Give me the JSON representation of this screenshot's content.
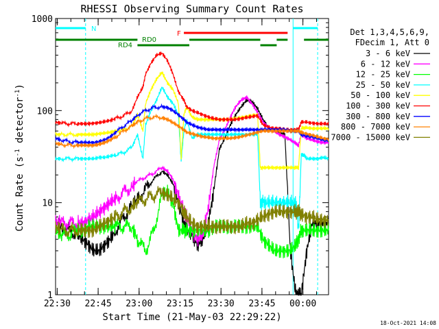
{
  "chart_data": {
    "type": "line",
    "title": "RHESSI Observing Summary Count Rates",
    "xlabel": "Start Time (21-May-03 22:29:22)",
    "ylabel_parts": [
      "Count Rate (s",
      "-1",
      " detector",
      "-1",
      ")"
    ],
    "yscale": "log",
    "ylim": [
      1,
      1000
    ],
    "xlim_minutes": [
      0,
      100
    ],
    "y_ticks": [
      {
        "v": 1,
        "label": "1"
      },
      {
        "v": 10,
        "label": "10"
      },
      {
        "v": 100,
        "label": "100"
      },
      {
        "v": 1000,
        "label": "1000"
      }
    ],
    "x_ticks": [
      {
        "t": 0.6,
        "label": "22:30"
      },
      {
        "t": 15.6,
        "label": "22:45"
      },
      {
        "t": 30.6,
        "label": "23:00"
      },
      {
        "t": 45.6,
        "label": "23:15"
      },
      {
        "t": 60.6,
        "label": "23:30"
      },
      {
        "t": 75.6,
        "label": "23:45"
      },
      {
        "t": 90.6,
        "label": "00:00"
      }
    ],
    "legend_header": [
      "Det 1,3,4,5,6,9,",
      "FDecim 1, Att 0"
    ],
    "series": [
      {
        "name": "3 - 6 keV",
        "color": "#000000",
        "x": [
          0,
          2,
          5,
          8,
          10,
          12,
          14,
          16,
          18,
          20,
          22,
          25,
          28,
          30,
          33,
          36,
          39,
          41,
          43,
          45,
          47,
          48,
          50,
          52,
          54,
          56,
          58,
          60,
          62,
          64,
          66,
          68,
          70,
          72,
          74,
          76,
          78,
          80,
          82,
          84,
          86,
          88,
          89,
          90,
          92,
          94,
          96,
          98,
          100
        ],
        "y": [
          6,
          5.5,
          5,
          4.5,
          4,
          3.5,
          3,
          3,
          3.5,
          4,
          5,
          7,
          9,
          11,
          14,
          18,
          22,
          20,
          16,
          10,
          6,
          5,
          4.5,
          3.5,
          4,
          6,
          14,
          38,
          50,
          70,
          90,
          110,
          130,
          125,
          105,
          80,
          65,
          60,
          58,
          55,
          3,
          1,
          1,
          1,
          3,
          6,
          6,
          6,
          6
        ]
      },
      {
        "name": "6 - 12 keV",
        "color": "#ff00ff",
        "x": [
          0,
          2,
          5,
          8,
          10,
          12,
          14,
          16,
          18,
          20,
          22,
          25,
          28,
          30,
          33,
          36,
          39,
          41,
          43,
          45,
          47,
          48,
          50,
          52,
          54,
          56,
          58,
          60,
          62,
          64,
          66,
          68,
          70,
          72,
          74,
          76,
          78,
          80,
          82,
          84,
          86,
          88,
          89,
          90,
          92,
          94,
          96,
          98,
          100
        ],
        "y": [
          6,
          6,
          6,
          6,
          6,
          6.5,
          7,
          8,
          9,
          10,
          11,
          13,
          15,
          17,
          19,
          21,
          24,
          22,
          18,
          12,
          8,
          7,
          5,
          4,
          4.5,
          9,
          25,
          48,
          62,
          85,
          110,
          130,
          140,
          118,
          95,
          75,
          65,
          60,
          55,
          52,
          48,
          44,
          42,
          55,
          50,
          48,
          46,
          45,
          45
        ]
      },
      {
        "name": "12 - 25 keV",
        "color": "#00ff00",
        "x": [
          0,
          2,
          5,
          8,
          10,
          12,
          14,
          16,
          18,
          20,
          22,
          25,
          28,
          30,
          33,
          36,
          39,
          41,
          43,
          45,
          47,
          48,
          50,
          52,
          54,
          56,
          58,
          60,
          62,
          64,
          66,
          68,
          70,
          72,
          74,
          76,
          78,
          80,
          82,
          84,
          86,
          88,
          89,
          90,
          92,
          94,
          96,
          98,
          100
        ],
        "y": [
          5,
          4.5,
          4.5,
          5,
          5,
          5.5,
          5.5,
          5.5,
          5.5,
          5.5,
          5.5,
          5.5,
          5.5,
          4,
          3,
          5,
          12,
          13,
          10,
          5,
          5,
          5,
          5,
          5,
          5,
          5,
          5.5,
          5.5,
          5.5,
          5.5,
          5.5,
          5.5,
          5.5,
          5.5,
          5.5,
          4,
          3.5,
          3,
          3,
          3,
          3,
          3.5,
          4,
          5,
          5,
          5,
          5,
          5,
          5
        ]
      },
      {
        "name": "25 - 50 keV",
        "color": "#00ffff",
        "x": [
          0,
          2,
          5,
          8,
          10,
          12,
          14,
          16,
          18,
          20,
          22,
          25,
          28,
          30,
          32,
          33,
          35,
          37,
          39,
          41,
          43,
          45,
          46,
          47,
          48,
          50,
          52,
          54,
          56,
          58,
          60,
          62,
          64,
          66,
          68,
          70,
          72,
          74,
          75,
          76,
          78,
          80,
          82,
          84,
          86,
          88,
          89,
          90,
          91,
          92,
          94,
          96,
          98,
          100
        ],
        "y": [
          30,
          30,
          30,
          30,
          30,
          30,
          30,
          31,
          31,
          32,
          33,
          35,
          40,
          55,
          30,
          70,
          100,
          130,
          180,
          140,
          120,
          90,
          28,
          60,
          80,
          50,
          55,
          55,
          55,
          55,
          55,
          55,
          55,
          55,
          55,
          55,
          55,
          55,
          10,
          10,
          10,
          10,
          10,
          10,
          10,
          10,
          5,
          33,
          33,
          30,
          30,
          30,
          31,
          30
        ]
      },
      {
        "name": "50 - 100 keV",
        "color": "#ffff00",
        "x": [
          0,
          2,
          5,
          8,
          10,
          12,
          14,
          16,
          18,
          20,
          22,
          25,
          28,
          30,
          32,
          33,
          35,
          37,
          39,
          41,
          43,
          45,
          46,
          47,
          48,
          50,
          52,
          54,
          56,
          58,
          60,
          62,
          64,
          66,
          68,
          70,
          72,
          74,
          75,
          76,
          78,
          80,
          82,
          84,
          86,
          88,
          89,
          90,
          91,
          92,
          94,
          96,
          98,
          100
        ],
        "y": [
          55,
          55,
          55,
          55,
          55,
          55,
          55,
          56,
          57,
          58,
          60,
          62,
          68,
          90,
          60,
          120,
          170,
          220,
          260,
          200,
          170,
          120,
          30,
          90,
          110,
          85,
          80,
          80,
          80,
          80,
          80,
          80,
          80,
          82,
          84,
          86,
          88,
          90,
          24,
          24,
          24,
          24,
          24,
          24,
          24,
          24,
          24,
          65,
          65,
          65,
          64,
          64,
          64,
          64
        ]
      },
      {
        "name": "100 - 300 keV",
        "color": "#ff0000",
        "x": [
          0,
          2,
          5,
          8,
          10,
          12,
          14,
          16,
          18,
          20,
          22,
          25,
          28,
          30,
          32,
          33,
          35,
          37,
          39,
          41,
          43,
          45,
          47,
          48,
          50,
          52,
          54,
          56,
          58,
          60,
          62,
          64,
          66,
          68,
          70,
          72,
          74,
          76,
          78,
          80,
          82,
          84,
          86,
          88,
          89,
          90,
          92,
          94,
          96,
          98,
          100
        ],
        "y": [
          75,
          73,
          72,
          72,
          72,
          72,
          73,
          74,
          76,
          78,
          82,
          88,
          100,
          140,
          180,
          250,
          330,
          400,
          420,
          350,
          250,
          160,
          130,
          110,
          100,
          95,
          90,
          85,
          82,
          80,
          80,
          80,
          80,
          82,
          84,
          86,
          88,
          70,
          66,
          64,
          64,
          62,
          62,
          62,
          62,
          75,
          75,
          73,
          72,
          72,
          72
        ]
      },
      {
        "name": "300 - 800 keV",
        "color": "#0000ff",
        "x": [
          0,
          2,
          5,
          8,
          10,
          12,
          14,
          16,
          18,
          20,
          22,
          25,
          28,
          30,
          33,
          36,
          39,
          41,
          43,
          45,
          47,
          48,
          50,
          52,
          54,
          56,
          58,
          60,
          62,
          64,
          66,
          68,
          70,
          72,
          74,
          76,
          78,
          80,
          82,
          84,
          86,
          88,
          89,
          90,
          92,
          94,
          96,
          98,
          100
        ],
        "y": [
          50,
          48,
          46,
          45,
          45,
          45,
          45,
          46,
          48,
          52,
          58,
          68,
          78,
          90,
          100,
          108,
          110,
          108,
          100,
          90,
          80,
          75,
          70,
          66,
          64,
          62,
          62,
          62,
          62,
          62,
          62,
          62,
          62,
          62,
          62,
          62,
          62,
          62,
          62,
          62,
          60,
          60,
          60,
          55,
          53,
          52,
          50,
          48,
          47
        ]
      },
      {
        "name": "800 - 7000 keV",
        "color": "#ff8000",
        "x": [
          0,
          2,
          5,
          8,
          10,
          12,
          14,
          16,
          18,
          20,
          22,
          25,
          28,
          30,
          33,
          36,
          39,
          41,
          43,
          45,
          47,
          48,
          50,
          52,
          54,
          56,
          58,
          60,
          62,
          64,
          66,
          68,
          70,
          72,
          74,
          76,
          78,
          80,
          82,
          84,
          86,
          88,
          89,
          90,
          92,
          94,
          96,
          98,
          100
        ],
        "y": [
          44,
          43,
          42,
          42,
          42,
          42,
          42,
          43,
          45,
          48,
          52,
          60,
          68,
          75,
          82,
          85,
          84,
          80,
          74,
          68,
          62,
          58,
          56,
          54,
          52,
          51,
          50,
          50,
          50,
          50,
          51,
          52,
          54,
          56,
          58,
          60,
          60,
          60,
          60,
          60,
          60,
          60,
          60,
          58,
          56,
          54,
          52,
          50,
          49
        ]
      },
      {
        "name": "7000 - 15000 keV",
        "color": "#808000",
        "x": [
          0,
          2,
          5,
          8,
          10,
          12,
          14,
          16,
          18,
          20,
          22,
          25,
          28,
          30,
          33,
          36,
          39,
          41,
          43,
          45,
          47,
          48,
          50,
          52,
          54,
          56,
          58,
          60,
          62,
          64,
          66,
          68,
          70,
          72,
          74,
          76,
          78,
          80,
          82,
          84,
          86,
          88,
          89,
          90,
          92,
          94,
          96,
          98,
          100
        ],
        "y": [
          5.5,
          5,
          5,
          5,
          5,
          5,
          5,
          5.5,
          6,
          6.5,
          7,
          8,
          9,
          10,
          11,
          12,
          13,
          12,
          11,
          10,
          8,
          7,
          6,
          5.5,
          5.5,
          5.5,
          5.5,
          5.5,
          5.5,
          5.5,
          5.5,
          5.5,
          6,
          6,
          6.5,
          7,
          7.5,
          8,
          8,
          8,
          8,
          8,
          8,
          7.5,
          7,
          7,
          6.5,
          6.5,
          6.5
        ]
      }
    ],
    "flags": [
      {
        "label": "N",
        "color": "#00ffff",
        "segments": [
          [
            0,
            11
          ],
          [
            87,
            96
          ]
        ]
      },
      {
        "label": "F",
        "color": "#ff0000",
        "segments": [
          [
            47,
            85
          ]
        ]
      },
      {
        "label": "RD0",
        "color": "#008000",
        "segments": [
          [
            0,
            30
          ],
          [
            49,
            75
          ],
          [
            81,
            85
          ],
          [
            91,
            100
          ]
        ]
      },
      {
        "label": "RD4",
        "color": "#008000",
        "segments": [
          [
            30,
            49
          ],
          [
            75,
            81
          ]
        ]
      }
    ],
    "vlines": [
      {
        "t": 11,
        "color": "#00ffff",
        "style": "dashed"
      },
      {
        "t": 87,
        "color": "#00ffff",
        "style": "solid"
      },
      {
        "t": 96,
        "color": "#00ffff",
        "style": "dashed"
      }
    ],
    "timestamp": "18-Oct-2021 14:08"
  }
}
